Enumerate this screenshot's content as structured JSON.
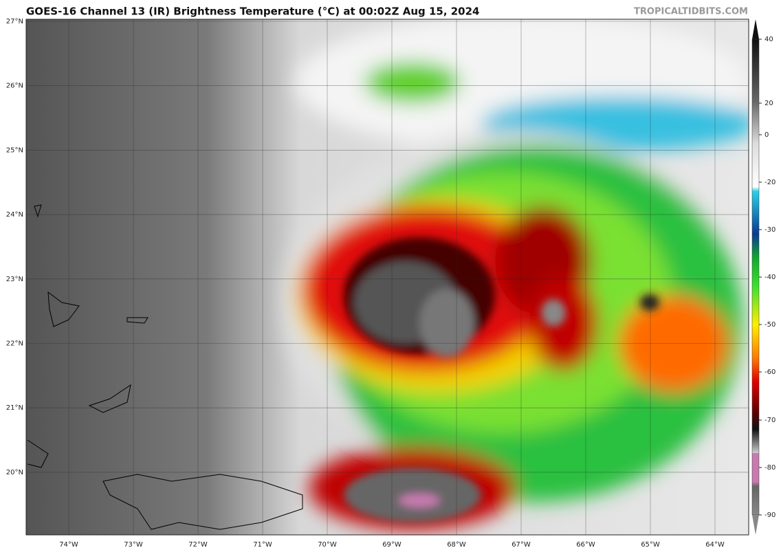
{
  "header": {
    "title": "GOES-16 Channel 13 (IR) Brightness Temperature (°C) at 00:02Z Aug 15, 2024",
    "credit": "TROPICALTIDBITS.COM"
  },
  "map": {
    "lat_labels": [
      "27°N",
      "26°N",
      "25°N",
      "24°N",
      "23°N",
      "22°N",
      "21°N",
      "20°N"
    ],
    "lon_labels": [
      "74°W",
      "73°W",
      "72°W",
      "71°W",
      "70°W",
      "69°W",
      "68°W",
      "67°W",
      "66°W",
      "65°W",
      "64°W"
    ]
  },
  "colorbar": {
    "ticks": [
      "40",
      "20",
      "0",
      "-20",
      "-30",
      "-40",
      "-50",
      "-60",
      "-70",
      "-80",
      "-90"
    ]
  }
}
